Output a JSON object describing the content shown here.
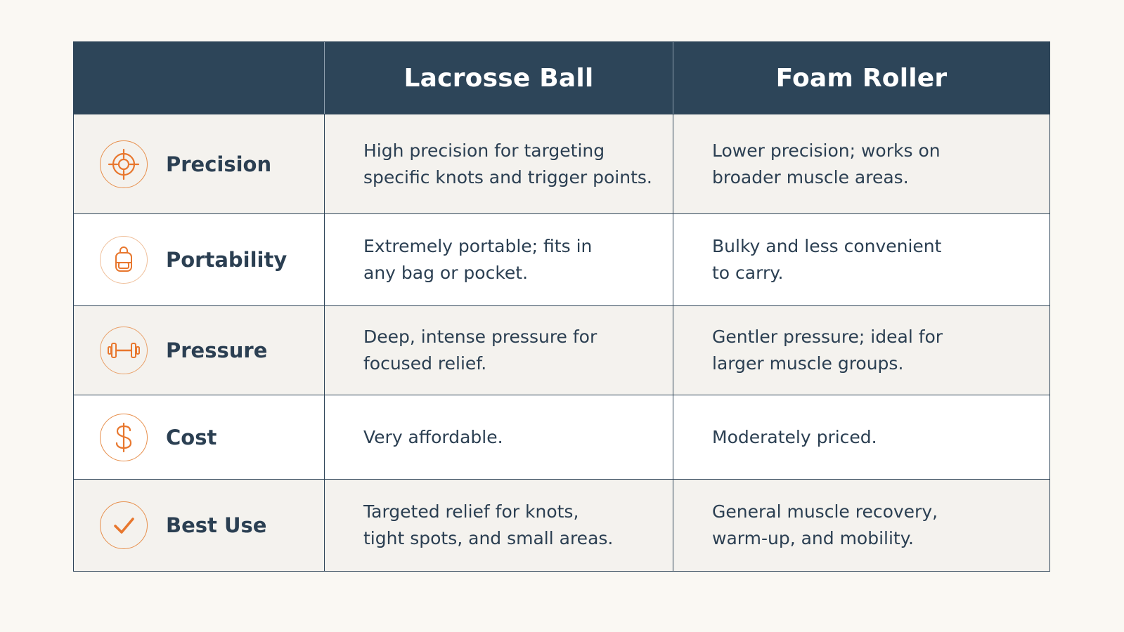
{
  "header": {
    "col1": "",
    "col2": "Lacrosse Ball",
    "col3": "Foam Roller"
  },
  "rows": [
    {
      "icon": "target-icon",
      "label": "Precision",
      "lacrosse": "High precision for targeting\nspecific knots and trigger points.",
      "foam": "Lower precision; works on\nbroader muscle areas."
    },
    {
      "icon": "backpack-icon",
      "label": "Portability",
      "lacrosse": "Extremely portable; fits in\nany bag or pocket.",
      "foam": "Bulky and less convenient\nto carry."
    },
    {
      "icon": "dumbbell-icon",
      "label": "Pressure",
      "lacrosse": "Deep, intense pressure for\nfocused relief.",
      "foam": "Gentler pressure; ideal for\nlarger muscle groups."
    },
    {
      "icon": "dollar-icon",
      "label": "Cost",
      "lacrosse": "Very affordable.",
      "foam": "Moderately priced."
    },
    {
      "icon": "checkmark-icon",
      "label": "Best Use",
      "lacrosse": "Targeted relief for knots,\ntight spots, and small areas.",
      "foam": "General muscle recovery,\nwarm-up, and mobility."
    }
  ],
  "colors": {
    "header_bg": "#2d4559",
    "accent": "#e8772e",
    "text": "#2b3f52",
    "page_bg": "#faf8f3"
  }
}
